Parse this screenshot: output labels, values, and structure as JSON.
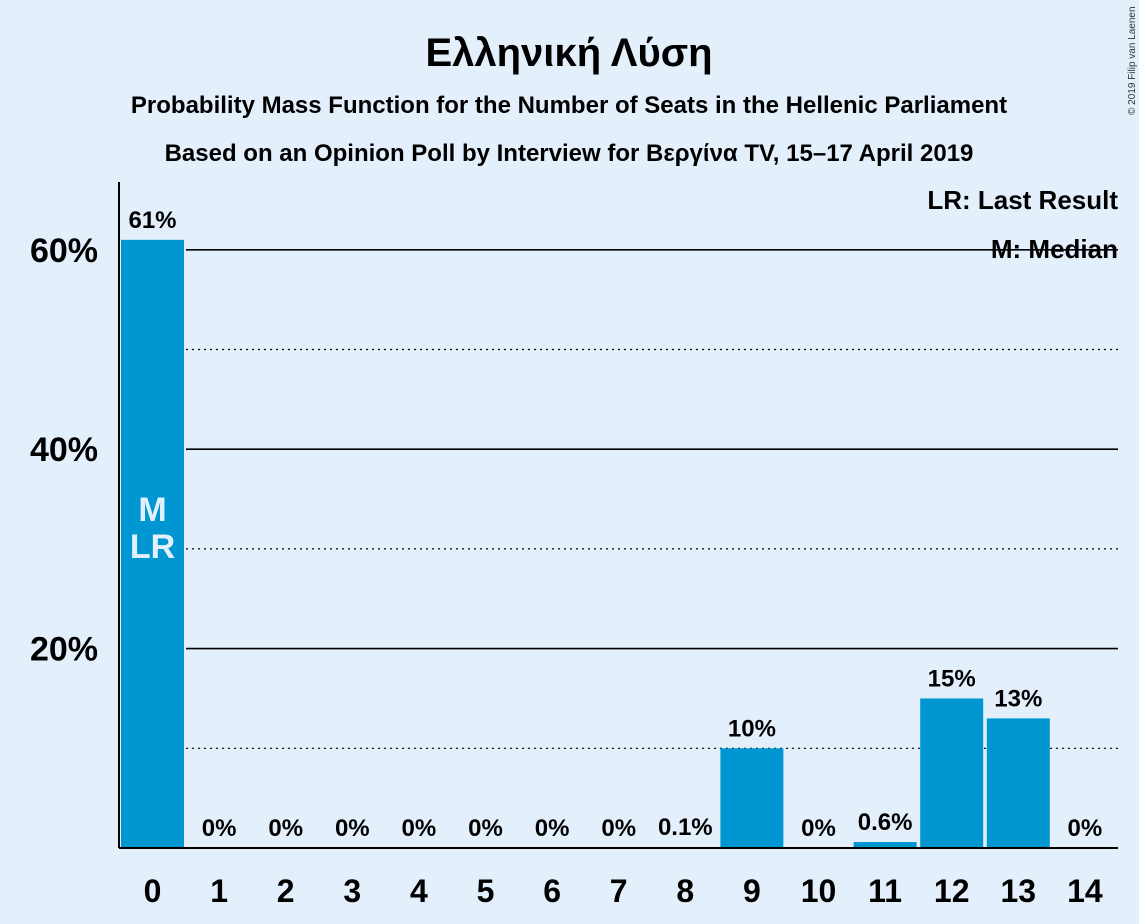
{
  "title": "Ελληνική Λύση",
  "subtitle1": "Probability Mass Function for the Number of Seats in the Hellenic Parliament",
  "subtitle2": "Based on an Opinion Poll by Interview for Βεργίνα TV, 15–17 April 2019",
  "copyright": "© 2019 Filip van Laenen",
  "colors": {
    "background": "#e3f0fc",
    "bar": "#0096d2",
    "text": "#111111"
  },
  "chart_data": {
    "type": "bar",
    "categories": [
      "0",
      "1",
      "2",
      "3",
      "4",
      "5",
      "6",
      "7",
      "8",
      "9",
      "10",
      "11",
      "12",
      "13",
      "14"
    ],
    "values": [
      61,
      0,
      0,
      0,
      0,
      0,
      0,
      0,
      0.1,
      10,
      0,
      0.6,
      15,
      13,
      0
    ],
    "value_labels": [
      "61%",
      "0%",
      "0%",
      "0%",
      "0%",
      "0%",
      "0%",
      "0%",
      "0.1%",
      "10%",
      "0%",
      "0.6%",
      "15%",
      "13%",
      "0%"
    ],
    "ylim": [
      0,
      66
    ],
    "yticks": [
      20,
      40,
      60
    ],
    "ytick_labels": [
      "20%",
      "40%",
      "60%"
    ],
    "minor_gridlines": [
      10,
      30,
      50
    ],
    "median_seat": "0",
    "last_result_seat": "0",
    "bar_marker_lines": [
      "M",
      "LR"
    ],
    "legend": [
      "LR: Last Result",
      "M: Median"
    ],
    "legend_position": "top-right",
    "grid": true
  }
}
